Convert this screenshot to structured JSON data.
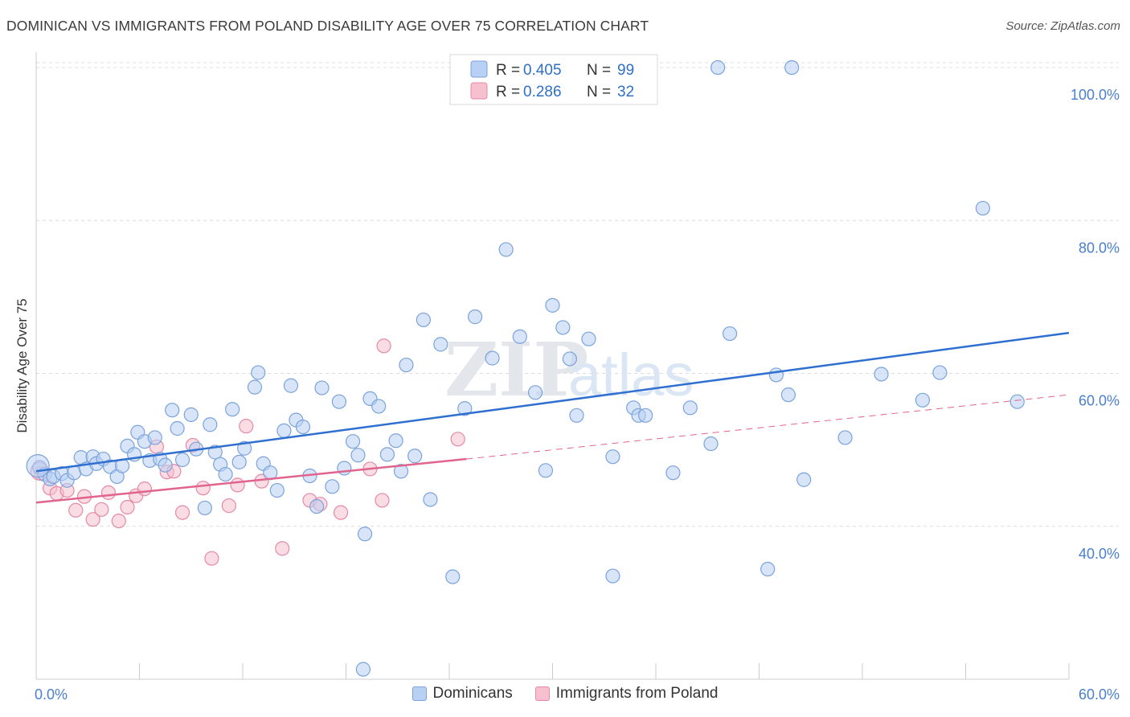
{
  "title": "DOMINICAN VS IMMIGRANTS FROM POLAND DISABILITY AGE OVER 75 CORRELATION CHART",
  "source": "Source: ZipAtlas.com",
  "watermark": {
    "zip": "ZIP",
    "atlas": "atlas"
  },
  "colors": {
    "dominicans_fill": "#b8d0f3",
    "dominicans_stroke": "#7aa3dc",
    "dominicans_line": "#2f6fd0",
    "poland_fill": "#f6c0d0",
    "poland_stroke": "#e58aa6",
    "poland_line": "#e0648e",
    "tick_text": "#4a7fd0",
    "grid": "#d9dde3"
  },
  "chart_data": {
    "type": "scatter",
    "title": "DOMINICAN VS IMMIGRANTS FROM POLAND DISABILITY AGE OVER 75 CORRELATION CHART",
    "xlabel": "",
    "ylabel": "Disability Age Over 75",
    "xlim": [
      0,
      60
    ],
    "ylim": [
      20,
      102
    ],
    "x_tick_labels": [
      "0.0%",
      "60.0%"
    ],
    "y_ticks": [
      40,
      60,
      80,
      100
    ],
    "y_tick_labels": [
      "40.0%",
      "60.0%",
      "80.0%",
      "100.0%"
    ],
    "grid": true,
    "legend_top": [
      {
        "r_label": "R =",
        "r_value": "0.405",
        "n_label": "N =",
        "n_value": "99"
      },
      {
        "r_label": "R =",
        "r_value": "0.286",
        "n_label": "N =",
        "n_value": "32"
      }
    ],
    "series": [
      {
        "name": "Dominicans",
        "trend": {
          "x": [
            0,
            60
          ],
          "y": [
            47.2,
            65.3
          ],
          "dashed_extension": false
        },
        "points": [
          [
            0.2,
            47.7
          ],
          [
            0.5,
            46.8
          ],
          [
            0.8,
            46.2
          ],
          [
            1.0,
            46.5
          ],
          [
            1.5,
            46.9
          ],
          [
            1.8,
            46.0
          ],
          [
            2.2,
            47.0
          ],
          [
            2.6,
            49.0
          ],
          [
            2.9,
            47.5
          ],
          [
            3.3,
            49.1
          ],
          [
            3.5,
            48.2
          ],
          [
            3.9,
            48.8
          ],
          [
            4.3,
            47.8
          ],
          [
            4.7,
            46.5
          ],
          [
            5.0,
            47.9
          ],
          [
            5.3,
            50.5
          ],
          [
            5.7,
            49.4
          ],
          [
            5.9,
            52.3
          ],
          [
            6.3,
            51.1
          ],
          [
            6.6,
            48.6
          ],
          [
            6.9,
            51.6
          ],
          [
            7.2,
            48.8
          ],
          [
            7.5,
            48.0
          ],
          [
            7.9,
            55.2
          ],
          [
            8.2,
            52.8
          ],
          [
            8.5,
            48.7
          ],
          [
            9.0,
            54.6
          ],
          [
            9.3,
            50.1
          ],
          [
            9.8,
            42.4
          ],
          [
            10.1,
            53.3
          ],
          [
            10.4,
            49.7
          ],
          [
            10.7,
            48.1
          ],
          [
            11.0,
            46.8
          ],
          [
            11.4,
            55.3
          ],
          [
            11.8,
            48.4
          ],
          [
            12.1,
            50.2
          ],
          [
            12.7,
            58.2
          ],
          [
            12.9,
            60.1
          ],
          [
            13.2,
            48.2
          ],
          [
            13.6,
            47.0
          ],
          [
            14.0,
            44.7
          ],
          [
            14.4,
            52.5
          ],
          [
            14.8,
            58.4
          ],
          [
            15.1,
            53.9
          ],
          [
            15.5,
            53.0
          ],
          [
            15.9,
            46.6
          ],
          [
            16.3,
            42.6
          ],
          [
            16.6,
            58.1
          ],
          [
            17.2,
            45.2
          ],
          [
            17.6,
            56.3
          ],
          [
            17.9,
            47.6
          ],
          [
            18.4,
            51.1
          ],
          [
            18.7,
            49.3
          ],
          [
            19.1,
            39.0
          ],
          [
            19.4,
            56.7
          ],
          [
            19.0,
            21.3
          ],
          [
            19.9,
            55.7
          ],
          [
            20.4,
            49.4
          ],
          [
            20.9,
            51.2
          ],
          [
            21.2,
            47.2
          ],
          [
            21.5,
            61.1
          ],
          [
            22.0,
            49.2
          ],
          [
            22.5,
            67.0
          ],
          [
            22.9,
            43.5
          ],
          [
            23.5,
            63.8
          ],
          [
            24.2,
            33.4
          ],
          [
            24.9,
            55.4
          ],
          [
            25.5,
            67.4
          ],
          [
            26.5,
            62.0
          ],
          [
            27.3,
            76.2
          ],
          [
            28.1,
            64.8
          ],
          [
            29.0,
            57.5
          ],
          [
            29.6,
            47.3
          ],
          [
            30.0,
            68.9
          ],
          [
            30.6,
            66.0
          ],
          [
            31.0,
            61.9
          ],
          [
            31.4,
            54.5
          ],
          [
            32.1,
            64.5
          ],
          [
            33.5,
            33.5
          ],
          [
            33.5,
            49.1
          ],
          [
            34.7,
            55.5
          ],
          [
            35.0,
            54.5
          ],
          [
            35.4,
            54.5
          ],
          [
            37.0,
            47.0
          ],
          [
            38.0,
            55.5
          ],
          [
            39.2,
            50.8
          ],
          [
            40.3,
            65.2
          ],
          [
            42.5,
            34.4
          ],
          [
            43.0,
            59.8
          ],
          [
            43.7,
            57.2
          ],
          [
            44.6,
            46.1
          ],
          [
            47.0,
            51.6
          ],
          [
            49.1,
            59.9
          ],
          [
            51.5,
            56.5
          ],
          [
            52.5,
            60.1
          ],
          [
            55.0,
            81.6
          ],
          [
            57.0,
            56.3
          ],
          [
            39.6,
            100.0
          ],
          [
            43.9,
            100.0
          ]
        ]
      },
      {
        "name": "Immigrants from Poland",
        "trend": {
          "x": [
            0,
            25
          ],
          "y": [
            43.1,
            48.8
          ],
          "dashed_extension": true,
          "dash_to": [
            60,
            57.2
          ]
        },
        "points": [
          [
            0.3,
            46.9
          ],
          [
            0.8,
            45.0
          ],
          [
            1.2,
            44.3
          ],
          [
            1.8,
            44.7
          ],
          [
            2.3,
            42.1
          ],
          [
            2.8,
            43.9
          ],
          [
            3.3,
            40.9
          ],
          [
            3.8,
            42.2
          ],
          [
            4.2,
            44.4
          ],
          [
            4.8,
            40.7
          ],
          [
            5.3,
            42.5
          ],
          [
            5.8,
            44.0
          ],
          [
            6.3,
            44.9
          ],
          [
            7.0,
            50.4
          ],
          [
            7.6,
            47.1
          ],
          [
            8.0,
            47.2
          ],
          [
            8.5,
            41.8
          ],
          [
            9.1,
            50.6
          ],
          [
            9.7,
            45.0
          ],
          [
            10.2,
            35.8
          ],
          [
            11.2,
            42.7
          ],
          [
            11.7,
            45.4
          ],
          [
            12.2,
            53.1
          ],
          [
            13.1,
            45.9
          ],
          [
            14.3,
            37.1
          ],
          [
            15.9,
            43.4
          ],
          [
            16.5,
            42.9
          ],
          [
            17.7,
            41.8
          ],
          [
            19.4,
            47.5
          ],
          [
            20.1,
            43.4
          ],
          [
            20.2,
            63.6
          ],
          [
            24.5,
            51.4
          ]
        ]
      }
    ]
  },
  "bottom_legend": [
    {
      "label": "Dominicans"
    },
    {
      "label": "Immigrants from Poland"
    }
  ]
}
